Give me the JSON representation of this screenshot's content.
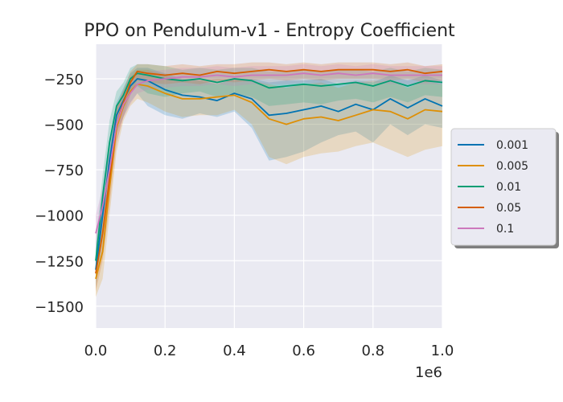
{
  "chart_data": {
    "type": "line",
    "title": "PPO on Pendulum-v1 - Entropy Coefficient",
    "xlabel": "",
    "ylabel": "",
    "x_offset_label": "1e6",
    "xlim": [
      0.0,
      1.0
    ],
    "ylim": [
      -1620,
      -60
    ],
    "xticks": [
      0.0,
      0.2,
      0.4,
      0.6,
      0.8,
      1.0
    ],
    "xtick_labels": [
      "0.0",
      "0.2",
      "0.4",
      "0.6",
      "0.8",
      "1.0"
    ],
    "yticks": [
      -1500,
      -1250,
      -1000,
      -750,
      -500,
      -250
    ],
    "ytick_labels": [
      "−1500",
      "−1250",
      "−1000",
      "−750",
      "−500",
      "−250"
    ],
    "grid": true,
    "legend_position": "right, outside plot",
    "x": [
      0.0,
      0.02,
      0.04,
      0.06,
      0.08,
      0.1,
      0.12,
      0.15,
      0.2,
      0.25,
      0.3,
      0.35,
      0.4,
      0.45,
      0.5,
      0.55,
      0.6,
      0.65,
      0.7,
      0.75,
      0.8,
      0.85,
      0.9,
      0.95,
      1.0
    ],
    "series": [
      {
        "name": "0.001",
        "color": "#0173b2",
        "values": [
          -1300,
          -1000,
          -700,
          -450,
          -370,
          -290,
          -250,
          -260,
          -310,
          -340,
          -350,
          -370,
          -330,
          -360,
          -450,
          -440,
          -420,
          -400,
          -430,
          -390,
          -420,
          -360,
          -410,
          -360,
          -400
        ],
        "lower": [
          -1400,
          -1150,
          -850,
          -550,
          -460,
          -380,
          -330,
          -400,
          -450,
          -470,
          -440,
          -460,
          -430,
          -520,
          -700,
          -680,
          -650,
          -600,
          -560,
          -540,
          -600,
          -500,
          -560,
          -500,
          -520
        ],
        "upper": [
          -1200,
          -850,
          -580,
          -380,
          -300,
          -220,
          -190,
          -190,
          -220,
          -250,
          -260,
          -280,
          -250,
          -250,
          -270,
          -260,
          -260,
          -250,
          -280,
          -260,
          -270,
          -230,
          -260,
          -230,
          -260
        ]
      },
      {
        "name": "0.005",
        "color": "#de8f05",
        "values": [
          -1350,
          -1200,
          -850,
          -520,
          -400,
          -320,
          -280,
          -290,
          -330,
          -360,
          -360,
          -350,
          -340,
          -380,
          -470,
          -500,
          -470,
          -460,
          -480,
          -450,
          -420,
          -430,
          -470,
          -420,
          -430
        ],
        "lower": [
          -1450,
          -1350,
          -1000,
          -650,
          -480,
          -400,
          -360,
          -380,
          -430,
          -460,
          -450,
          -450,
          -420,
          -500,
          -680,
          -720,
          -680,
          -660,
          -650,
          -620,
          -600,
          -640,
          -680,
          -640,
          -620
        ],
        "upper": [
          -1250,
          -1050,
          -700,
          -400,
          -320,
          -240,
          -200,
          -200,
          -230,
          -260,
          -260,
          -250,
          -250,
          -260,
          -280,
          -300,
          -280,
          -270,
          -300,
          -270,
          -260,
          -260,
          -300,
          -260,
          -280
        ]
      },
      {
        "name": "0.01",
        "color": "#029e73",
        "values": [
          -1250,
          -900,
          -600,
          -400,
          -340,
          -250,
          -220,
          -230,
          -250,
          -260,
          -250,
          -270,
          -250,
          -260,
          -300,
          -290,
          -280,
          -290,
          -280,
          -270,
          -290,
          -260,
          -290,
          -260,
          -270
        ],
        "lower": [
          -1350,
          -1050,
          -750,
          -500,
          -420,
          -330,
          -290,
          -330,
          -350,
          -330,
          -320,
          -350,
          -330,
          -350,
          -400,
          -390,
          -380,
          -390,
          -370,
          -360,
          -380,
          -350,
          -380,
          -340,
          -350
        ],
        "upper": [
          -1150,
          -780,
          -480,
          -320,
          -270,
          -190,
          -170,
          -170,
          -180,
          -200,
          -190,
          -200,
          -190,
          -190,
          -210,
          -210,
          -200,
          -210,
          -200,
          -200,
          -210,
          -190,
          -210,
          -190,
          -200
        ]
      },
      {
        "name": "0.05",
        "color": "#d55e00",
        "values": [
          -1320,
          -1100,
          -800,
          -500,
          -380,
          -270,
          -210,
          -220,
          -230,
          -220,
          -230,
          -210,
          -220,
          -210,
          -200,
          -210,
          -200,
          -210,
          -200,
          -200,
          -200,
          -210,
          -200,
          -220,
          -210
        ],
        "lower": [
          -1420,
          -1250,
          -950,
          -600,
          -460,
          -340,
          -260,
          -270,
          -280,
          -270,
          -280,
          -260,
          -270,
          -260,
          -250,
          -260,
          -250,
          -260,
          -250,
          -250,
          -250,
          -260,
          -250,
          -270,
          -260
        ],
        "upper": [
          -1220,
          -950,
          -650,
          -400,
          -310,
          -210,
          -170,
          -170,
          -180,
          -170,
          -180,
          -170,
          -170,
          -160,
          -160,
          -170,
          -160,
          -170,
          -160,
          -160,
          -160,
          -170,
          -160,
          -180,
          -170
        ]
      },
      {
        "name": "0.1",
        "color": "#cc78bc",
        "values": [
          -1100,
          -950,
          -750,
          -500,
          -390,
          -330,
          -280,
          -260,
          -250,
          -240,
          -240,
          -230,
          -240,
          -230,
          -230,
          -230,
          -220,
          -230,
          -220,
          -230,
          -220,
          -230,
          -230,
          -230,
          -230
        ],
        "lower": [
          -1200,
          -1050,
          -850,
          -600,
          -460,
          -390,
          -330,
          -310,
          -300,
          -290,
          -290,
          -280,
          -290,
          -280,
          -280,
          -280,
          -270,
          -280,
          -270,
          -280,
          -270,
          -280,
          -280,
          -280,
          -280
        ],
        "upper": [
          -1000,
          -850,
          -650,
          -400,
          -320,
          -270,
          -230,
          -210,
          -200,
          -190,
          -190,
          -180,
          -190,
          -180,
          -180,
          -180,
          -170,
          -180,
          -170,
          -180,
          -170,
          -180,
          -180,
          -180,
          -180
        ]
      }
    ]
  }
}
